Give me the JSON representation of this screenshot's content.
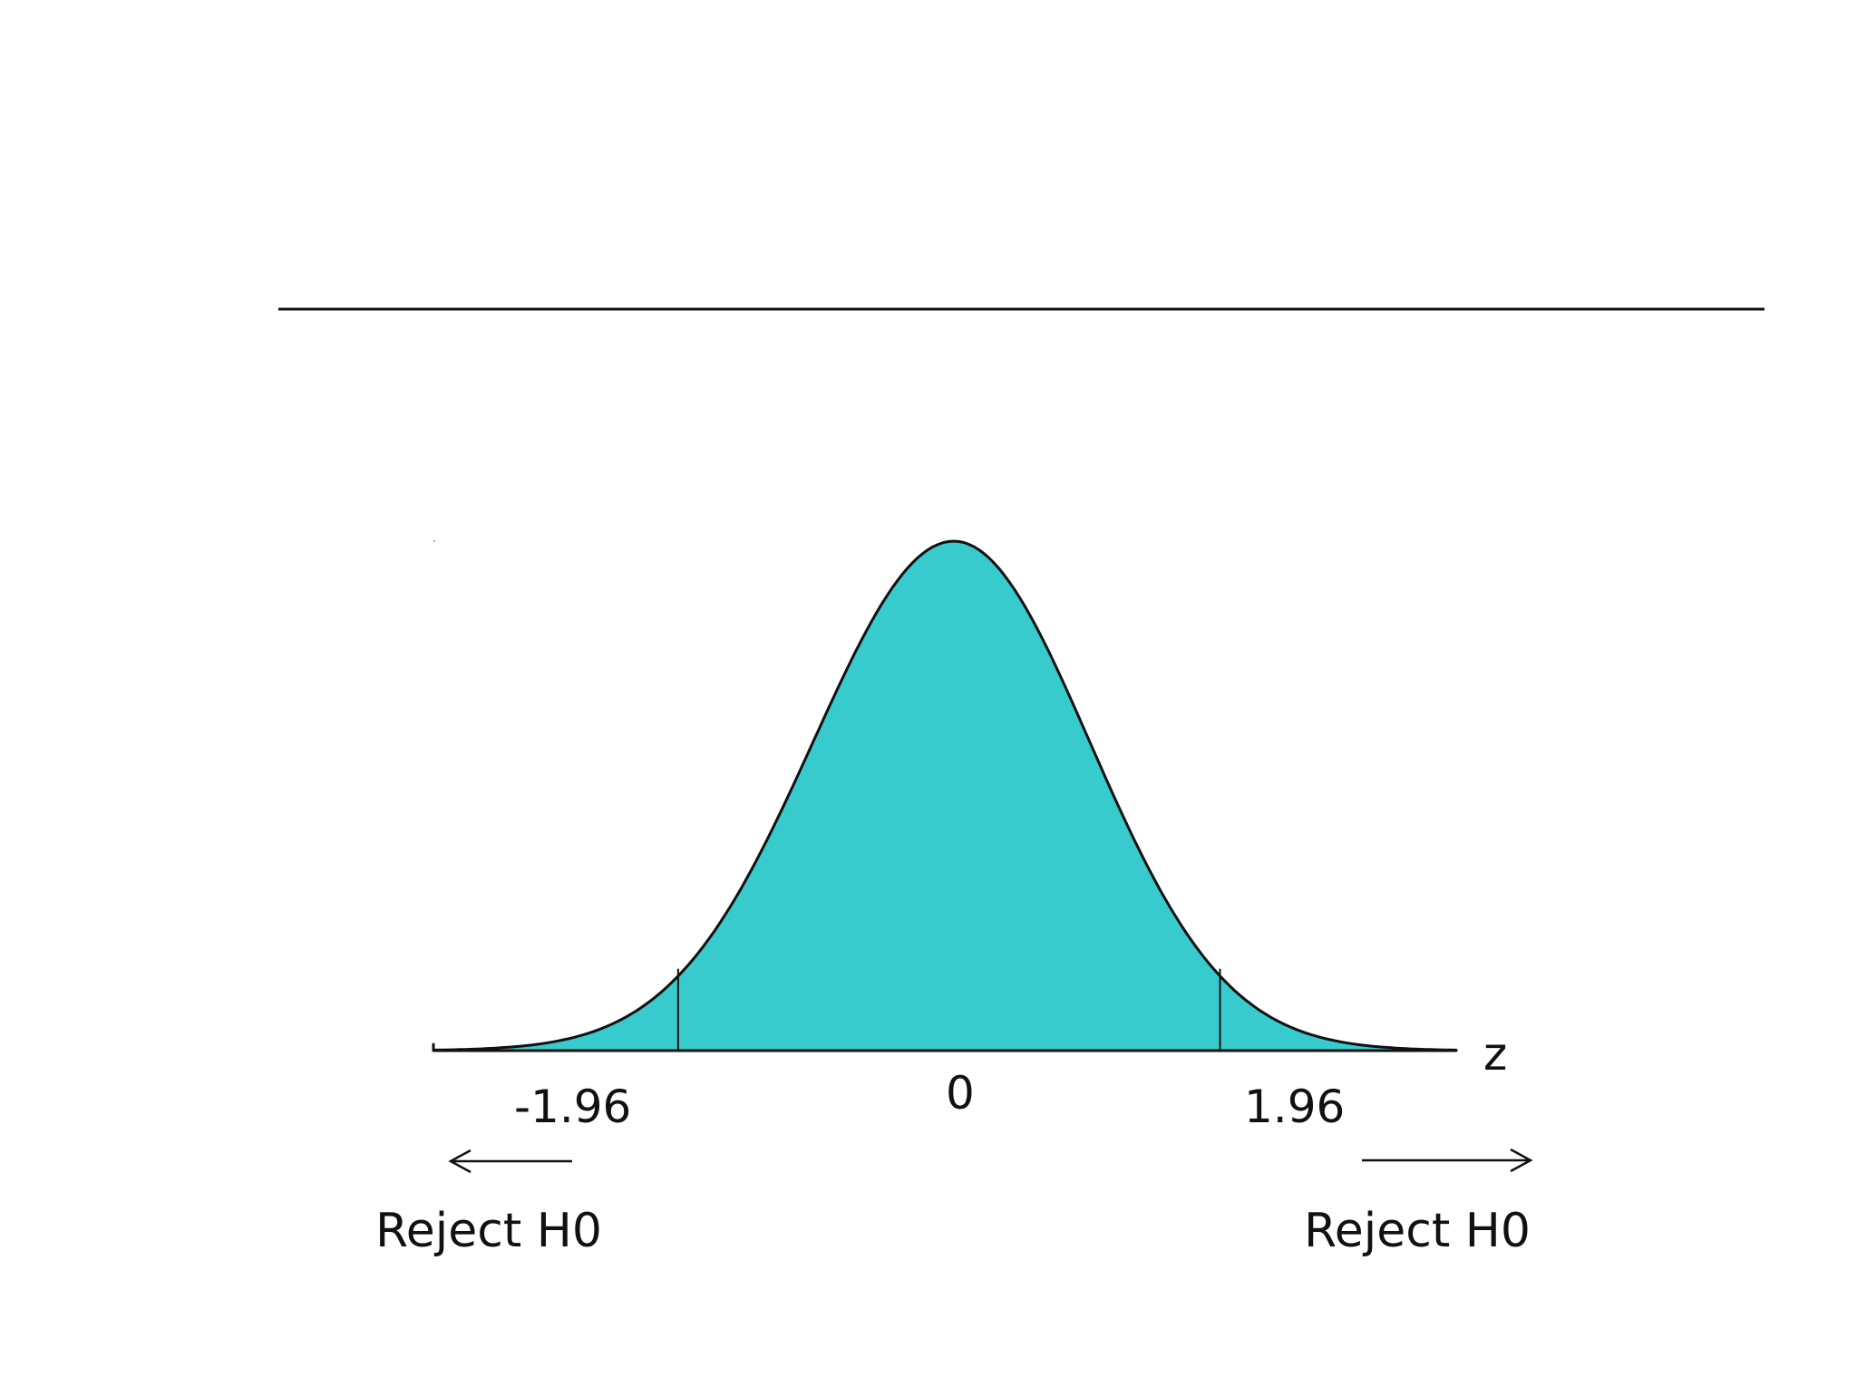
{
  "diagram": {
    "type": "standard-normal-two-tailed-test",
    "curve_fill_color": "#38cbce",
    "stroke_color": "#111111",
    "axis_label": "z",
    "z_range": [
      -3.7,
      3.7
    ],
    "critical_values": [
      -1.96,
      1.96
    ],
    "center_value": 0,
    "tick_labels": {
      "left": "-1.96",
      "center": "0",
      "right": "1.96"
    },
    "rejection_regions": {
      "left": {
        "label": "Reject H0",
        "arrow": "left-arrow"
      },
      "right": {
        "label": "Reject H0",
        "arrow": "right-arrow"
      }
    }
  }
}
